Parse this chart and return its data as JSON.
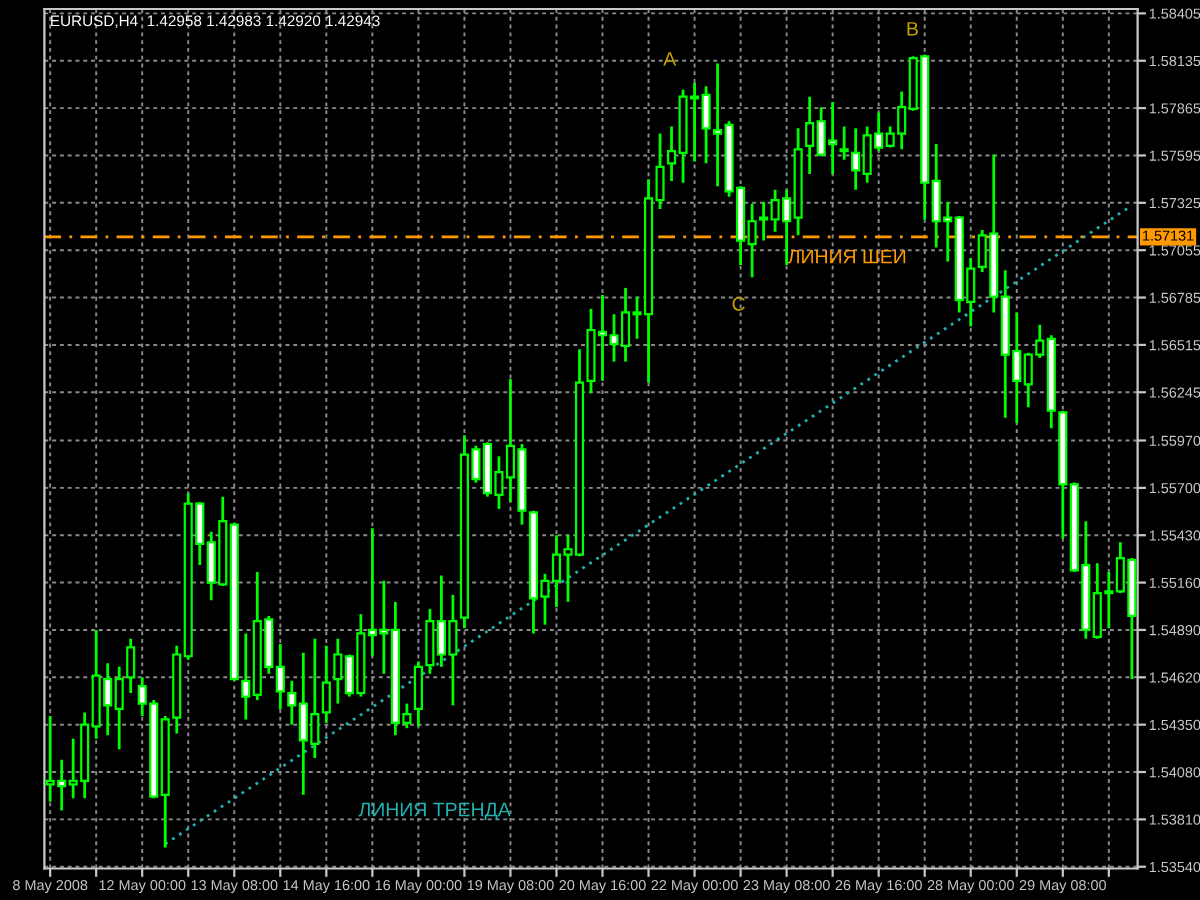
{
  "chart_data": {
    "type": "candlestick",
    "color": "#00ff00",
    "categories": [
      "8 May 2008",
      null,
      null,
      null,
      null,
      null,
      null,
      null,
      "12 May 00:00",
      null,
      null,
      null,
      null,
      null,
      null,
      null,
      "13 May 08:00",
      null,
      null,
      null,
      null,
      null,
      null,
      null,
      "14 May 16:00",
      null,
      null,
      null,
      null,
      null,
      null,
      null,
      "16 May 00:00",
      null,
      null,
      null,
      null,
      null,
      null,
      null,
      "19 May 08:00",
      null,
      null,
      null,
      null,
      null,
      null,
      null,
      "20 May 16:00",
      null,
      null,
      null,
      null,
      null,
      null,
      null,
      "22 May 00:00",
      null,
      null,
      null,
      null,
      null,
      null,
      null,
      "23 May 08:00",
      null,
      null,
      null,
      null,
      null,
      null,
      null,
      "26 May 16:00",
      null,
      null,
      null,
      null,
      null,
      null,
      null,
      "28 May 00:00",
      null,
      null,
      null,
      null,
      null,
      null,
      null,
      "29 May 08:00",
      null,
      null,
      null,
      null,
      null,
      null
    ],
    "ohlc": [
      [
        1.5401,
        1.544,
        1.5391,
        1.5403
      ],
      [
        1.5403,
        1.5415,
        1.5386,
        1.54
      ],
      [
        1.5401,
        1.5427,
        1.5393,
        1.5403
      ],
      [
        1.5403,
        1.5442,
        1.5393,
        1.5435
      ],
      [
        1.5434,
        1.5489,
        1.5427,
        1.5463
      ],
      [
        1.5461,
        1.547,
        1.5429,
        1.5446
      ],
      [
        1.5444,
        1.5468,
        1.5421,
        1.5461
      ],
      [
        1.5462,
        1.5484,
        1.5453,
        1.5479
      ],
      [
        1.5457,
        1.5462,
        1.544,
        1.5447
      ],
      [
        1.5447,
        1.5449,
        1.5393,
        1.5394
      ],
      [
        1.5395,
        1.544,
        1.5365,
        1.5438
      ],
      [
        1.5439,
        1.548,
        1.543,
        1.5475
      ],
      [
        1.5474,
        1.5567,
        1.5472,
        1.5561
      ],
      [
        1.5561,
        1.5562,
        1.5526,
        1.5538
      ],
      [
        1.5539,
        1.5545,
        1.5506,
        1.5516
      ],
      [
        1.5515,
        1.5565,
        1.5514,
        1.5551
      ],
      [
        1.5549,
        1.555,
        1.546,
        1.5461
      ],
      [
        1.546,
        1.5487,
        1.5438,
        1.5451
      ],
      [
        1.5452,
        1.5522,
        1.5449,
        1.5494
      ],
      [
        1.5495,
        1.5497,
        1.5464,
        1.5468
      ],
      [
        1.5468,
        1.5481,
        1.5444,
        1.5454
      ],
      [
        1.5453,
        1.546,
        1.5435,
        1.5446
      ],
      [
        1.5447,
        1.5476,
        1.5395,
        1.5426
      ],
      [
        1.5424,
        1.5484,
        1.5416,
        1.5441
      ],
      [
        1.5442,
        1.548,
        1.5436,
        1.5459
      ],
      [
        1.5461,
        1.5484,
        1.5447,
        1.5475
      ],
      [
        1.5474,
        1.5475,
        1.5451,
        1.5453
      ],
      [
        1.5453,
        1.5498,
        1.5451,
        1.5487
      ],
      [
        1.5489,
        1.5547,
        1.5474,
        1.5486
      ],
      [
        1.5489,
        1.5517,
        1.5464,
        1.5487
      ],
      [
        1.5489,
        1.5505,
        1.5429,
        1.5436
      ],
      [
        1.5436,
        1.5447,
        1.5433,
        1.5441
      ],
      [
        1.5444,
        1.5471,
        1.5434,
        1.5468
      ],
      [
        1.5469,
        1.5501,
        1.5464,
        1.5494
      ],
      [
        1.5494,
        1.552,
        1.5468,
        1.5475
      ],
      [
        1.5475,
        1.5509,
        1.5446,
        1.5494
      ],
      [
        1.5496,
        1.56,
        1.549,
        1.5589
      ],
      [
        1.5592,
        1.5594,
        1.5573,
        1.5575
      ],
      [
        1.5595,
        1.5596,
        1.5565,
        1.5567
      ],
      [
        1.5566,
        1.5588,
        1.5558,
        1.5579
      ],
      [
        1.5576,
        1.5632,
        1.5562,
        1.5594
      ],
      [
        1.5592,
        1.5595,
        1.5549,
        1.5557
      ],
      [
        1.5556,
        1.5557,
        1.5487,
        1.5507
      ],
      [
        1.5508,
        1.5521,
        1.5492,
        1.5517
      ],
      [
        1.5517,
        1.5543,
        1.5502,
        1.5532
      ],
      [
        1.5532,
        1.5543,
        1.5505,
        1.5535
      ],
      [
        1.5532,
        1.5649,
        1.5531,
        1.563
      ],
      [
        1.5631,
        1.5672,
        1.5624,
        1.566
      ],
      [
        1.5659,
        1.568,
        1.5631,
        1.5657
      ],
      [
        1.5657,
        1.5669,
        1.5642,
        1.5652
      ],
      [
        1.5651,
        1.5684,
        1.5642,
        1.567
      ],
      [
        1.5669,
        1.5679,
        1.5655,
        1.567
      ],
      [
        1.5669,
        1.5746,
        1.563,
        1.5735
      ],
      [
        1.5734,
        1.5772,
        1.5729,
        1.5753
      ],
      [
        1.5755,
        1.5776,
        1.5745,
        1.5762
      ],
      [
        1.5761,
        1.5797,
        1.5744,
        1.5793
      ],
      [
        1.5793,
        1.5801,
        1.5756,
        1.5792
      ],
      [
        1.5794,
        1.5799,
        1.5755,
        1.5775
      ],
      [
        1.5774,
        1.5812,
        1.5742,
        1.5772
      ],
      [
        1.5777,
        1.5779,
        1.5736,
        1.5739
      ],
      [
        1.5741,
        1.5742,
        1.5697,
        1.5711
      ],
      [
        1.5709,
        1.5732,
        1.569,
        1.5722
      ],
      [
        1.5723,
        1.5733,
        1.5711,
        1.5724
      ],
      [
        1.5723,
        1.574,
        1.5716,
        1.5734
      ],
      [
        1.5735,
        1.574,
        1.5697,
        1.5722
      ],
      [
        1.5724,
        1.5775,
        1.5714,
        1.5763
      ],
      [
        1.5765,
        1.5793,
        1.5749,
        1.5778
      ],
      [
        1.5779,
        1.5787,
        1.5759,
        1.576
      ],
      [
        1.5768,
        1.579,
        1.5749,
        1.5766
      ],
      [
        1.5763,
        1.5776,
        1.5757,
        1.5762
      ],
      [
        1.5761,
        1.5775,
        1.574,
        1.5751
      ],
      [
        1.5749,
        1.5776,
        1.5744,
        1.5771
      ],
      [
        1.5772,
        1.5784,
        1.5762,
        1.5764
      ],
      [
        1.5765,
        1.5776,
        1.5764,
        1.5772
      ],
      [
        1.5772,
        1.5796,
        1.5763,
        1.5787
      ],
      [
        1.5786,
        1.5816,
        1.5785,
        1.5815
      ],
      [
        1.5816,
        1.5817,
        1.5723,
        1.5744
      ],
      [
        1.5745,
        1.5766,
        1.5707,
        1.5722
      ],
      [
        1.5724,
        1.5733,
        1.5699,
        1.5722
      ],
      [
        1.5724,
        1.5725,
        1.567,
        1.5677
      ],
      [
        1.5676,
        1.5701,
        1.5662,
        1.5695
      ],
      [
        1.5696,
        1.5717,
        1.5693,
        1.5714
      ],
      [
        1.5715,
        1.576,
        1.567,
        1.5679
      ],
      [
        1.5679,
        1.5694,
        1.561,
        1.5646
      ],
      [
        1.5648,
        1.567,
        1.5607,
        1.5631
      ],
      [
        1.5629,
        1.5647,
        1.5616,
        1.5646
      ],
      [
        1.5646,
        1.5663,
        1.5644,
        1.5654
      ],
      [
        1.5655,
        1.5657,
        1.5604,
        1.5614
      ],
      [
        1.5613,
        1.5614,
        1.5541,
        1.5572
      ],
      [
        1.5572,
        1.5573,
        1.5522,
        1.5523
      ],
      [
        1.5526,
        1.5551,
        1.5484,
        1.5489
      ],
      [
        1.5485,
        1.5527,
        1.5484,
        1.551
      ],
      [
        1.551,
        1.5522,
        1.549,
        1.5511
      ],
      [
        1.5511,
        1.5539,
        1.551,
        1.553
      ],
      [
        1.5529,
        1.553,
        1.5461,
        1.5497
      ]
    ],
    "series": [
      {
        "type": "line",
        "name": "ЛИНИЯ ТРЕНДА",
        "values": [
          null,
          null,
          null,
          null,
          null,
          null,
          null,
          null,
          null,
          null,
          1.5367,
          null,
          null,
          null,
          null,
          null,
          null,
          null,
          null,
          null,
          null,
          null,
          null,
          null,
          null,
          null,
          null,
          null,
          null,
          null,
          null,
          null,
          null,
          null,
          null,
          null,
          null,
          null,
          null,
          null,
          null,
          null,
          null,
          null,
          null,
          null,
          null,
          null,
          null,
          null,
          null,
          null,
          null,
          null,
          null,
          null,
          null,
          null,
          null,
          null,
          null,
          null,
          null,
          null,
          null,
          null,
          null,
          null,
          null,
          null,
          null,
          null,
          null,
          null,
          null,
          null,
          null,
          null,
          null,
          null,
          null,
          null,
          null,
          null,
          null,
          null,
          null,
          null,
          null,
          null,
          null,
          null,
          null,
          null,
          1.5731
        ],
        "color": "#20b2b2",
        "line_style": "dotted"
      }
    ],
    "ref_lines": [
      {
        "axis": "y",
        "value": 1.57131,
        "label": "1.57131",
        "color": "#ff9900",
        "line_style": "dashed"
      }
    ],
    "annotations": [
      "EURUSD,H4  1.42958 1.42983 1.42920 1.42943",
      "A",
      "B",
      "C",
      "ЛИНИЯ ШЕИ"
    ],
    "ylim": [
      1.5353,
      1.5843
    ],
    "yticks": [
      1.58405,
      1.58135,
      1.57865,
      1.57595,
      1.57325,
      1.57055,
      1.56785,
      1.56515,
      1.56245,
      {
        "value": 1.5597,
        "label": "1.55970"
      },
      {
        "value": 1.557,
        "label": "1.55700"
      },
      {
        "value": 1.5543,
        "label": "1.55430"
      },
      {
        "value": 1.5516,
        "label": "1.55160"
      },
      {
        "value": 1.5489,
        "label": "1.54890"
      },
      {
        "value": 1.5462,
        "label": "1.54620"
      },
      {
        "value": 1.5435,
        "label": "1.54350"
      },
      {
        "value": 1.5408,
        "label": "1.54080"
      },
      {
        "value": 1.5381,
        "label": "1.53810"
      },
      {
        "value": 1.5354,
        "label": "1.53540"
      }
    ],
    "grid": true
  }
}
